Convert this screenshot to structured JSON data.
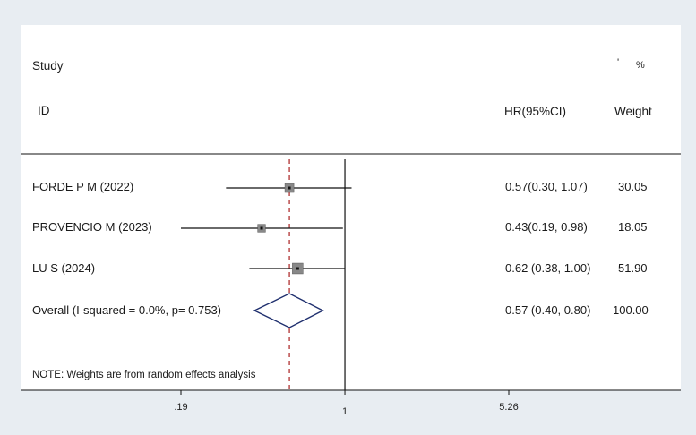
{
  "header": {
    "study": "Study",
    "id": "ID",
    "hr": "HR(95%CI)",
    "weight": "Weight",
    "pct": "%",
    "mark": "'"
  },
  "note": "NOTE: Weights are from random effects analysis",
  "colors": {
    "line": "#111111",
    "ref_dash": "#b03030",
    "diamond": "#1f2f6e",
    "box": "#888888"
  },
  "chart_data": {
    "type": "forest",
    "log_scale": true,
    "null_line": 1,
    "pooled_line": 0.57,
    "x_range": [
      0.19,
      5.26
    ],
    "ticks": [
      {
        "value": 0.19,
        "label": ".19"
      },
      {
        "value": 1,
        "label": "1"
      },
      {
        "value": 5.26,
        "label": "5.26"
      }
    ],
    "studies": [
      {
        "label": "FORDE P M (2022)",
        "hr": 0.57,
        "lo": 0.3,
        "hi": 1.07,
        "ci_text": "0.57(0.30, 1.07)",
        "weight": "30.05",
        "w": 30.05
      },
      {
        "label": "PROVENCIO M (2023)",
        "hr": 0.43,
        "lo": 0.19,
        "hi": 0.98,
        "ci_text": "0.43(0.19, 0.98)",
        "weight": "18.05",
        "w": 18.05
      },
      {
        "label": "LU S (2024)",
        "hr": 0.62,
        "lo": 0.38,
        "hi": 1.0,
        "ci_text": "0.62 (0.38, 1.00)",
        "weight": "51.90",
        "w": 51.9
      }
    ],
    "overall": {
      "label": "Overall (I-squared = 0.0%, p= 0.753)",
      "hr": 0.57,
      "lo": 0.4,
      "hi": 0.8,
      "ci_text": "0.57 (0.40, 0.80)",
      "weight": "100.00"
    }
  }
}
